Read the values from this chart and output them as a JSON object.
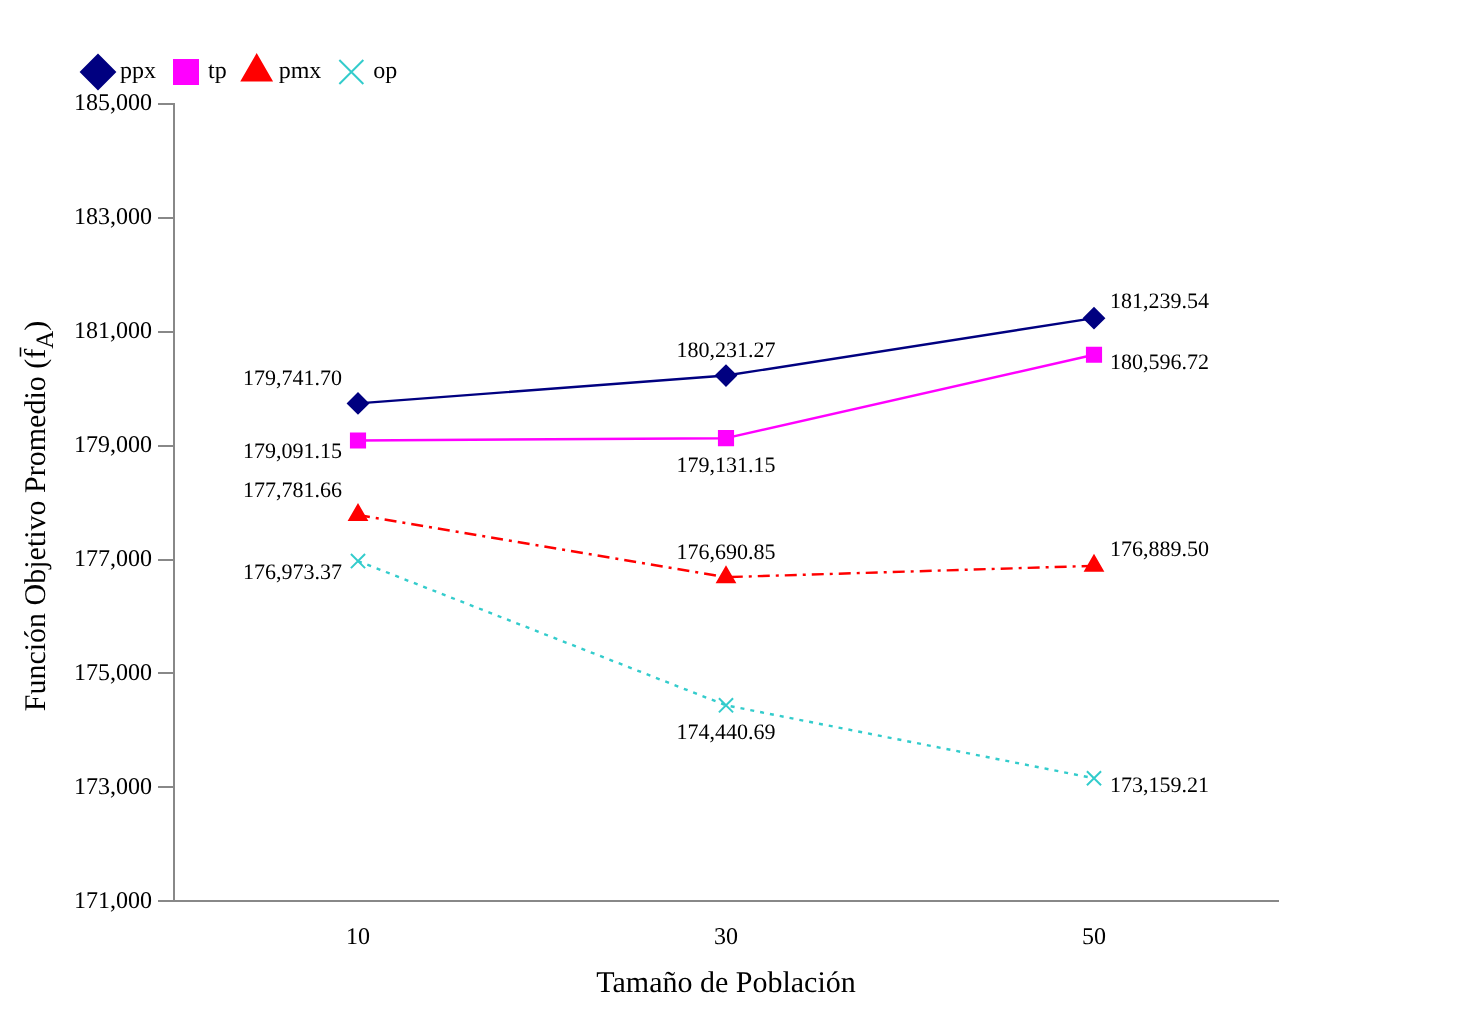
{
  "chart_data": {
    "type": "line",
    "xlabel": "Tamaño de Población",
    "ylabel": "Función Objetivo Promedio (f̄$_{A}$)",
    "categories": [
      "10",
      "30",
      "50"
    ],
    "series": [
      {
        "name": "ppx",
        "color": "#000080",
        "values": [
          179741.7,
          180231.27,
          181239.54
        ],
        "value_labels": [
          "179,741.70",
          "180,231.27",
          "181,239.54"
        ],
        "marker": "diamond",
        "line_style": "solid"
      },
      {
        "name": "tp",
        "color": "#ff00ff",
        "values": [
          179091.15,
          179131.15,
          180596.72
        ],
        "value_labels": [
          "179,091.15",
          "179,131.15",
          "180,596.72"
        ],
        "marker": "square",
        "line_style": "solid"
      },
      {
        "name": "pmx",
        "color": "#ff0000",
        "values": [
          177781.66,
          176690.85,
          176889.5
        ],
        "value_labels": [
          "177,781.66",
          "176,690.85",
          "176,889.50"
        ],
        "marker": "triangle",
        "line_style": "dashdot"
      },
      {
        "name": "op",
        "color": "#33cccc",
        "values": [
          176973.37,
          174440.69,
          173159.21
        ],
        "value_labels": [
          "176,973.37",
          "174,440.69",
          "173,159.21"
        ],
        "marker": "cross",
        "line_style": "dotted"
      }
    ],
    "ylim": [
      171000,
      185000
    ],
    "yticks": [
      {
        "value": 171000,
        "label": "171,000"
      },
      {
        "value": 173000,
        "label": "173,000"
      },
      {
        "value": 175000,
        "label": "175,000"
      },
      {
        "value": 177000,
        "label": "177,000"
      },
      {
        "value": 179000,
        "label": "179,000"
      },
      {
        "value": 181000,
        "label": "181,000"
      },
      {
        "value": 183000,
        "label": "183,000"
      },
      {
        "value": 185000,
        "label": "185,000"
      }
    ],
    "grid": false,
    "legend": "top left"
  }
}
